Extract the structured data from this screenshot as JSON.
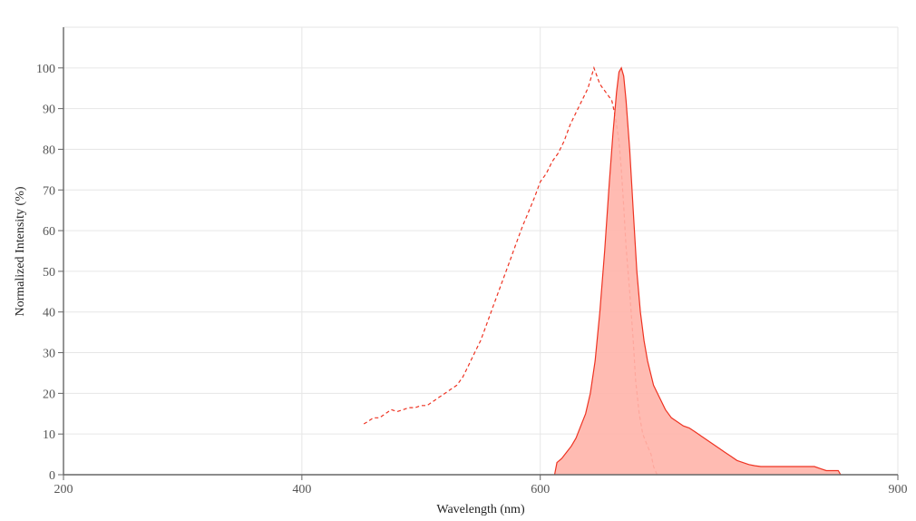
{
  "chart_data": {
    "type": "line",
    "title": "",
    "xlabel": "Wavelength (nm)",
    "ylabel": "Normalized Intensity (%)",
    "xlim": [
      200,
      900
    ],
    "ylim": [
      0,
      110
    ],
    "xticks": [
      200,
      400,
      600,
      900
    ],
    "yticks": [
      0,
      10,
      20,
      30,
      40,
      50,
      60,
      70,
      80,
      90,
      100
    ],
    "grid": true,
    "colors": {
      "line": "#ee3322",
      "fill": "#ffb4aa"
    },
    "series": [
      {
        "style": "dashed",
        "x": [
          452,
          455,
          460,
          465,
          470,
          475,
          480,
          485,
          490,
          495,
          500,
          505,
          510,
          515,
          520,
          525,
          530,
          535,
          540,
          545,
          550,
          555,
          560,
          565,
          570,
          575,
          580,
          585,
          590,
          595,
          600,
          605,
          610,
          615,
          620,
          625,
          630,
          635,
          640,
          645,
          650,
          655,
          660,
          663,
          666,
          668,
          670,
          672,
          675,
          678,
          680,
          683,
          686,
          690,
          693,
          695,
          698
        ],
        "y": [
          12.5,
          13,
          14,
          14,
          15,
          16,
          15.5,
          16,
          16.5,
          16.5,
          17,
          17,
          18,
          19,
          20,
          21,
          22,
          24,
          27,
          30,
          33,
          37,
          41,
          45,
          49,
          53,
          57,
          61,
          64.5,
          68,
          72,
          74,
          77,
          79,
          82,
          86,
          89,
          92,
          95,
          100,
          96,
          94,
          92,
          88,
          82,
          75,
          66,
          56,
          45,
          33,
          23,
          15,
          10,
          7,
          5,
          2,
          0
        ]
      },
      {
        "style": "solid-filled",
        "x": [
          612,
          614,
          618,
          622,
          626,
          630,
          634,
          638,
          642,
          646,
          650,
          654,
          658,
          661,
          664,
          666,
          668,
          670,
          672,
          675,
          678,
          681,
          684,
          687,
          690,
          695,
          700,
          705,
          710,
          715,
          720,
          725,
          730,
          735,
          740,
          745,
          750,
          755,
          760,
          765,
          770,
          775,
          780,
          785,
          790,
          795,
          800,
          805,
          810,
          815,
          820,
          825,
          830,
          835,
          840,
          845,
          850,
          852
        ],
        "y": [
          0,
          3,
          4,
          5.5,
          7,
          9,
          12,
          15,
          20,
          28,
          40,
          55,
          72,
          84,
          94,
          99,
          100,
          98,
          92,
          80,
          65,
          50,
          40,
          33,
          28,
          22,
          19,
          16,
          14,
          13,
          12,
          11.5,
          10.5,
          9.5,
          8.5,
          7.5,
          6.5,
          5.5,
          4.5,
          3.5,
          3,
          2.5,
          2.2,
          2,
          2,
          2,
          2,
          2,
          2,
          2,
          2,
          2,
          2,
          1.5,
          1,
          1,
          1,
          0
        ]
      }
    ]
  }
}
